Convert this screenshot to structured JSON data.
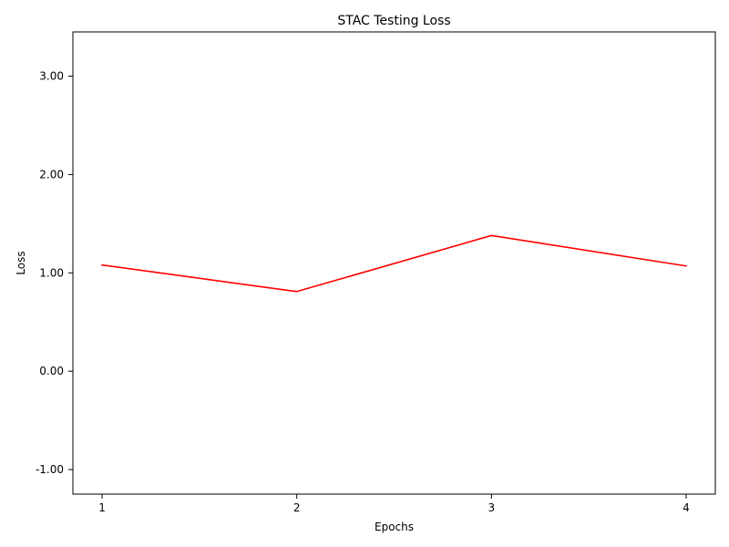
{
  "chart_data": {
    "type": "line",
    "title": "STAC Testing Loss",
    "xlabel": "Epochs",
    "ylabel": "Loss",
    "x": [
      1,
      2,
      3,
      4
    ],
    "xticks": [
      "1",
      "2",
      "3",
      "4"
    ],
    "xlim": [
      0.85,
      4.15
    ],
    "yticks": [
      "-1.00",
      "0.00",
      "1.00",
      "2.00",
      "3.00"
    ],
    "ylim": [
      -1.25,
      3.45
    ],
    "grid": false,
    "legend": "none",
    "series": [
      {
        "color": "#ff0000",
        "values": [
          1.08,
          0.81,
          1.38,
          1.07
        ]
      }
    ]
  }
}
